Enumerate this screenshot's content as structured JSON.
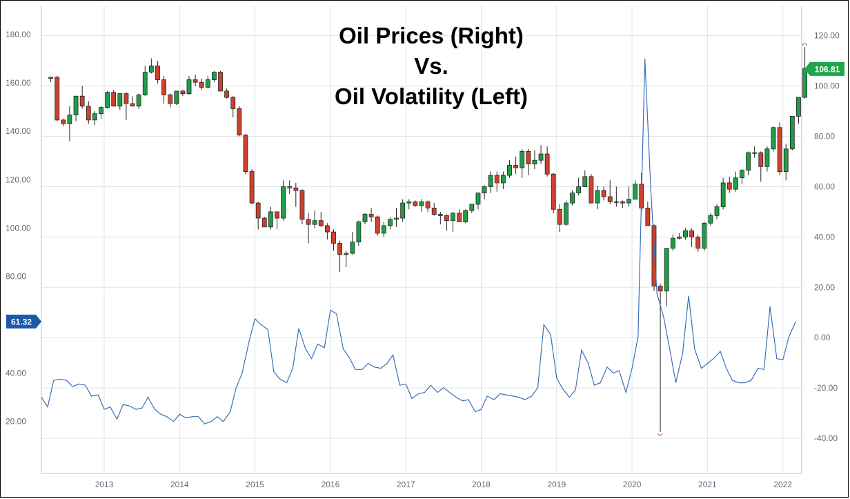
{
  "chart_data": {
    "type": "candlestick+line",
    "title": [
      "Oil Prices (Right)",
      "Vs.",
      "Oil Volatility (Left)"
    ],
    "x_ticks": [
      "2013",
      "2014",
      "2015",
      "2016",
      "2017",
      "2018",
      "2019",
      "2020",
      "2021",
      "2022"
    ],
    "left_axis": {
      "ticks": [
        "180.00",
        "160.00",
        "140.00",
        "120.00",
        "100.00",
        "80.00",
        "40.00",
        "20.00"
      ],
      "range": [
        -1.5,
        192
      ]
    },
    "right_axis": {
      "ticks": [
        "120.00",
        "100.00",
        "80.00",
        "60.00",
        "40.00",
        "20.00",
        "0.00",
        "-20.00",
        "-40.00"
      ],
      "range": [
        -54,
        132
      ]
    },
    "last_price_label": "106.81",
    "last_volatility_label": "61.32",
    "colors": {
      "up": "#1e9e48",
      "down": "#d1402e",
      "line": "#3a6fb8",
      "price_badge": "#1fa64a",
      "vol_badge": "#1c5aa6",
      "grid": "#dfe3e8"
    },
    "candles_monthly": {
      "start": "2012-04",
      "ohlc": [
        [
          103.0,
          103.5,
          101.5,
          103.5
        ],
        [
          103.5,
          104.0,
          86.0,
          86.5
        ],
        [
          86.5,
          87.0,
          84.0,
          85.0
        ],
        [
          85.0,
          92.0,
          78.0,
          88.5
        ],
        [
          88.5,
          96.0,
          86.0,
          96.0
        ],
        [
          96.0,
          100.0,
          91.0,
          92.0
        ],
        [
          92.0,
          94.0,
          85.0,
          86.5
        ],
        [
          86.5,
          90.0,
          84.5,
          89.0
        ],
        [
          89.0,
          92.0,
          87.0,
          91.5
        ],
        [
          91.5,
          98.0,
          91.0,
          97.5
        ],
        [
          97.5,
          98.5,
          92.0,
          92.0
        ],
        [
          92.0,
          97.0,
          90.5,
          97.0
        ],
        [
          97.0,
          97.5,
          86.5,
          93.0
        ],
        [
          93.0,
          96.0,
          92.0,
          92.0
        ],
        [
          92.0,
          97.0,
          91.0,
          96.5
        ],
        [
          96.5,
          108.0,
          96.0,
          105.5
        ],
        [
          105.5,
          111.0,
          105.0,
          108.0
        ],
        [
          108.0,
          110.0,
          101.0,
          102.5
        ],
        [
          102.5,
          104.0,
          93.0,
          96.5
        ],
        [
          96.5,
          97.0,
          91.5,
          93.0
        ],
        [
          93.0,
          98.0,
          92.5,
          98.0
        ],
        [
          98.0,
          98.5,
          96.0,
          97.0
        ],
        [
          97.0,
          104.0,
          96.5,
          102.5
        ],
        [
          102.5,
          104.5,
          100.0,
          101.5
        ],
        [
          101.5,
          103.0,
          98.5,
          99.5
        ],
        [
          99.5,
          104.0,
          99.0,
          102.5
        ],
        [
          102.5,
          106.0,
          101.5,
          105.5
        ],
        [
          105.5,
          106.0,
          98.0,
          98.0
        ],
        [
          98.0,
          99.0,
          95.0,
          95.5
        ],
        [
          95.5,
          96.0,
          87.5,
          91.0
        ],
        [
          91.0,
          92.0,
          80.0,
          80.5
        ],
        [
          80.5,
          81.0,
          65.0,
          66.0
        ],
        [
          66.0,
          67.0,
          53.0,
          53.5
        ],
        [
          53.5,
          54.0,
          43.0,
          47.5
        ],
        [
          47.5,
          48.0,
          44.5,
          44.0
        ],
        [
          44.0,
          52.0,
          43.0,
          50.0
        ],
        [
          50.0,
          50.0,
          43.0,
          47.5
        ],
        [
          47.5,
          62.5,
          46.5,
          60.0
        ],
        [
          60.0,
          62.5,
          57.0,
          59.5
        ],
        [
          59.5,
          61.5,
          52.0,
          58.5
        ],
        [
          58.5,
          59.0,
          45.0,
          47.0
        ],
        [
          47.0,
          49.5,
          37.5,
          45.0
        ],
        [
          45.0,
          50.5,
          43.5,
          46.5
        ],
        [
          46.5,
          50.0,
          44.0,
          44.5
        ],
        [
          44.5,
          45.5,
          39.0,
          42.0
        ],
        [
          42.0,
          43.0,
          34.5,
          37.5
        ],
        [
          37.5,
          38.5,
          26.0,
          33.0
        ],
        [
          33.0,
          34.5,
          28.0,
          33.5
        ],
        [
          33.5,
          42.0,
          33.0,
          38.0
        ],
        [
          38.0,
          46.5,
          36.5,
          46.0
        ],
        [
          46.0,
          49.5,
          45.0,
          49.0
        ],
        [
          49.0,
          51.5,
          46.0,
          48.0
        ],
        [
          48.0,
          48.5,
          40.5,
          41.5
        ],
        [
          41.5,
          46.0,
          40.0,
          44.5
        ],
        [
          44.5,
          48.0,
          43.0,
          47.0
        ],
        [
          47.0,
          51.5,
          44.0,
          47.5
        ],
        [
          47.5,
          55.0,
          46.0,
          53.5
        ],
        [
          53.5,
          55.0,
          51.0,
          54.0
        ],
        [
          54.0,
          54.5,
          52.0,
          52.5
        ],
        [
          52.5,
          55.0,
          50.0,
          54.0
        ],
        [
          54.0,
          54.5,
          50.0,
          51.5
        ],
        [
          51.5,
          53.5,
          48.5,
          49.0
        ],
        [
          49.0,
          50.0,
          45.0,
          48.5
        ],
        [
          48.5,
          49.0,
          42.5,
          46.5
        ],
        [
          46.5,
          50.0,
          42.0,
          49.5
        ],
        [
          49.5,
          51.0,
          46.5,
          46.0
        ],
        [
          46.0,
          51.0,
          45.5,
          50.5
        ],
        [
          50.5,
          53.0,
          49.5,
          53.0
        ],
        [
          53.0,
          57.5,
          51.0,
          57.5
        ],
        [
          57.5,
          60.5,
          55.0,
          60.0
        ],
        [
          60.0,
          66.0,
          57.5,
          64.5
        ],
        [
          64.5,
          66.0,
          58.0,
          61.5
        ],
        [
          61.5,
          66.0,
          59.0,
          64.5
        ],
        [
          64.5,
          70.5,
          63.5,
          68.5
        ],
        [
          68.5,
          72.0,
          65.0,
          67.5
        ],
        [
          67.5,
          75.0,
          63.5,
          74.0
        ],
        [
          74.0,
          75.0,
          64.5,
          69.0
        ],
        [
          69.0,
          74.5,
          67.0,
          70.5
        ],
        [
          70.5,
          76.5,
          69.0,
          73.0
        ],
        [
          73.0,
          76.0,
          64.0,
          65.0
        ],
        [
          65.0,
          65.5,
          49.5,
          51.0
        ],
        [
          51.0,
          53.0,
          42.0,
          45.0
        ],
        [
          45.0,
          54.5,
          44.5,
          53.5
        ],
        [
          53.5,
          58.5,
          52.5,
          57.5
        ],
        [
          57.5,
          63.5,
          56.5,
          60.0
        ],
        [
          60.0,
          66.5,
          60.0,
          64.0
        ],
        [
          64.0,
          65.0,
          53.5,
          53.5
        ],
        [
          53.5,
          60.5,
          51.0,
          58.5
        ],
        [
          58.5,
          60.0,
          54.5,
          56.0
        ],
        [
          56.0,
          62.5,
          53.0,
          54.0
        ],
        [
          54.0,
          60.0,
          52.0,
          54.0
        ],
        [
          54.0,
          54.5,
          51.5,
          53.5
        ],
        [
          53.5,
          60.0,
          52.0,
          55.0
        ],
        [
          55.0,
          62.5,
          55.0,
          61.0
        ],
        [
          61.0,
          65.5,
          50.0,
          51.5
        ],
        [
          51.5,
          54.0,
          44.5,
          44.5
        ],
        [
          44.5,
          45.0,
          18.5,
          20.5
        ],
        [
          20.5,
          21.5,
          -37.5,
          18.5
        ],
        [
          18.5,
          34.0,
          12.5,
          35.5
        ],
        [
          35.5,
          41.0,
          34.5,
          39.5
        ],
        [
          39.5,
          41.5,
          39.0,
          40.0
        ],
        [
          40.0,
          43.5,
          39.0,
          42.5
        ],
        [
          42.5,
          43.5,
          36.0,
          40.0
        ],
        [
          40.0,
          41.0,
          34.0,
          35.5
        ],
        [
          35.5,
          46.0,
          34.5,
          45.5
        ],
        [
          45.5,
          49.5,
          44.5,
          48.5
        ],
        [
          48.5,
          53.0,
          47.0,
          52.0
        ],
        [
          52.0,
          63.5,
          51.0,
          61.5
        ],
        [
          61.5,
          64.0,
          57.5,
          59.0
        ],
        [
          59.0,
          66.0,
          58.0,
          63.5
        ],
        [
          63.5,
          67.0,
          61.0,
          66.5
        ],
        [
          66.5,
          74.0,
          64.5,
          73.5
        ],
        [
          73.5,
          76.0,
          71.5,
          73.5
        ],
        [
          73.5,
          74.0,
          62.0,
          68.0
        ],
        [
          68.0,
          76.0,
          66.0,
          75.0
        ],
        [
          75.0,
          84.0,
          74.0,
          83.5
        ],
        [
          83.5,
          85.5,
          64.5,
          66.0
        ],
        [
          66.0,
          77.0,
          62.5,
          75.0
        ],
        [
          75.0,
          88.0,
          74.5,
          88.0
        ],
        [
          88.0,
          95.5,
          85.0,
          95.5
        ],
        [
          95.5,
          115.5,
          95.0,
          107.0
        ]
      ]
    },
    "volatility_series": {
      "start": "2012-03",
      "values": [
        [
          2012.167,
          30.0
        ],
        [
          2012.25,
          26.0
        ],
        [
          2012.33,
          37.0
        ],
        [
          2012.42,
          37.5
        ],
        [
          2012.5,
          37.0
        ],
        [
          2012.58,
          34.5
        ],
        [
          2012.67,
          35.5
        ],
        [
          2012.75,
          35.0
        ],
        [
          2012.83,
          30.5
        ],
        [
          2012.92,
          31.0
        ],
        [
          2013.0,
          25.0
        ],
        [
          2013.08,
          26.0
        ],
        [
          2013.17,
          21.0
        ],
        [
          2013.25,
          27.0
        ],
        [
          2013.33,
          26.5
        ],
        [
          2013.42,
          25.0
        ],
        [
          2013.5,
          25.5
        ],
        [
          2013.58,
          30.0
        ],
        [
          2013.67,
          25.0
        ],
        [
          2013.75,
          23.0
        ],
        [
          2013.83,
          22.0
        ],
        [
          2013.92,
          20.0
        ],
        [
          2014.0,
          23.0
        ],
        [
          2014.08,
          21.5
        ],
        [
          2014.17,
          22.0
        ],
        [
          2014.25,
          22.0
        ],
        [
          2014.33,
          19.0
        ],
        [
          2014.42,
          20.0
        ],
        [
          2014.5,
          22.0
        ],
        [
          2014.58,
          20.0
        ],
        [
          2014.67,
          24.0
        ],
        [
          2014.75,
          34.0
        ],
        [
          2014.83,
          40.0
        ],
        [
          2014.92,
          53.0
        ],
        [
          2015.0,
          62.5
        ],
        [
          2015.08,
          60.0
        ],
        [
          2015.17,
          58.0
        ],
        [
          2015.25,
          40.5
        ],
        [
          2015.33,
          37.5
        ],
        [
          2015.42,
          36.0
        ],
        [
          2015.5,
          42.0
        ],
        [
          2015.58,
          58.5
        ],
        [
          2015.67,
          50.0
        ],
        [
          2015.75,
          46.0
        ],
        [
          2015.83,
          52.0
        ],
        [
          2015.92,
          50.5
        ],
        [
          2016.0,
          66.0
        ],
        [
          2016.08,
          64.5
        ],
        [
          2016.17,
          50.0
        ],
        [
          2016.25,
          46.5
        ],
        [
          2016.33,
          41.5
        ],
        [
          2016.42,
          41.5
        ],
        [
          2016.5,
          44.0
        ],
        [
          2016.58,
          42.5
        ],
        [
          2016.67,
          42.0
        ],
        [
          2016.75,
          44.0
        ],
        [
          2016.83,
          47.5
        ],
        [
          2016.92,
          35.0
        ],
        [
          2017.0,
          35.5
        ],
        [
          2017.08,
          29.5
        ],
        [
          2017.17,
          31.5
        ],
        [
          2017.25,
          32.0
        ],
        [
          2017.33,
          35.0
        ],
        [
          2017.42,
          32.0
        ],
        [
          2017.5,
          34.0
        ],
        [
          2017.58,
          32.0
        ],
        [
          2017.67,
          30.0
        ],
        [
          2017.75,
          28.5
        ],
        [
          2017.83,
          29.0
        ],
        [
          2017.92,
          24.0
        ],
        [
          2018.0,
          25.0
        ],
        [
          2018.08,
          30.5
        ],
        [
          2018.17,
          29.0
        ],
        [
          2018.25,
          31.5
        ],
        [
          2018.33,
          31.0
        ],
        [
          2018.42,
          30.5
        ],
        [
          2018.5,
          30.0
        ],
        [
          2018.58,
          29.0
        ],
        [
          2018.67,
          30.5
        ],
        [
          2018.75,
          34.0
        ],
        [
          2018.83,
          60.0
        ],
        [
          2018.92,
          56.0
        ],
        [
          2019.0,
          38.0
        ],
        [
          2019.08,
          33.5
        ],
        [
          2019.17,
          30.0
        ],
        [
          2019.25,
          33.0
        ],
        [
          2019.33,
          49.5
        ],
        [
          2019.42,
          44.0
        ],
        [
          2019.5,
          35.0
        ],
        [
          2019.58,
          36.0
        ],
        [
          2019.67,
          42.5
        ],
        [
          2019.75,
          40.0
        ],
        [
          2019.83,
          41.0
        ],
        [
          2019.92,
          32.0
        ],
        [
          2020.0,
          42.0
        ],
        [
          2020.08,
          55.0
        ],
        [
          2020.17,
          170.0
        ],
        [
          2020.25,
          115.0
        ],
        [
          2020.33,
          73.0
        ],
        [
          2020.42,
          63.0
        ],
        [
          2020.5,
          50.0
        ],
        [
          2020.58,
          36.0
        ],
        [
          2020.67,
          48.0
        ],
        [
          2020.75,
          72.0
        ],
        [
          2020.83,
          50.0
        ],
        [
          2020.92,
          42.0
        ],
        [
          2021.0,
          44.0
        ],
        [
          2021.08,
          46.0
        ],
        [
          2021.17,
          49.0
        ],
        [
          2021.25,
          42.0
        ],
        [
          2021.33,
          37.0
        ],
        [
          2021.42,
          36.0
        ],
        [
          2021.5,
          36.0
        ],
        [
          2021.58,
          37.0
        ],
        [
          2021.67,
          42.0
        ],
        [
          2021.75,
          41.5
        ],
        [
          2021.83,
          67.5
        ],
        [
          2021.92,
          46.0
        ],
        [
          2022.0,
          45.5
        ],
        [
          2022.08,
          55.0
        ],
        [
          2022.17,
          61.3
        ]
      ]
    }
  }
}
